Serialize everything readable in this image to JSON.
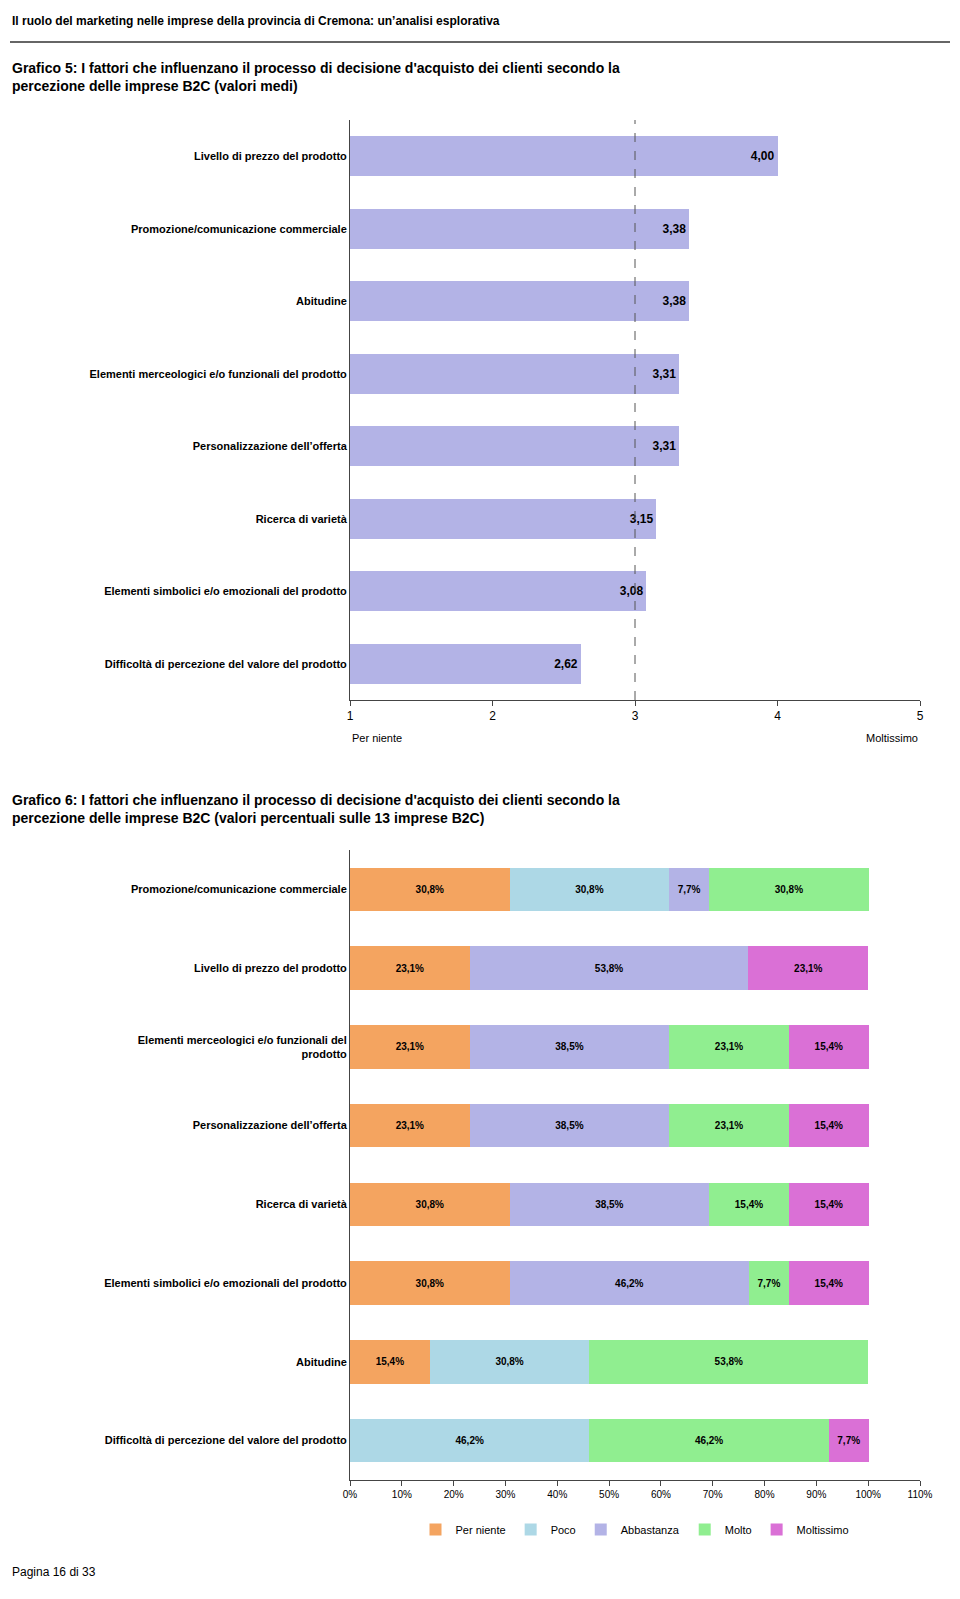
{
  "header": "Il ruolo del marketing nelle imprese della provincia di Cremona: un’analisi esplorativa",
  "footer": "Pagina 16 di 33",
  "chart_data": [
    {
      "type": "bar",
      "orientation": "horizontal",
      "title": "Grafico 5: I fattori che influenzano il processo di decisione d'acquisto dei clienti secondo la\npercezione delle imprese B2C (valori medi)",
      "categories": [
        "Livello di prezzo del prodotto",
        "Promozione/comunicazione commerciale",
        "Abitudine",
        "Elementi merceologici e/o funzionali del prodotto",
        "Personalizzazione dell’offerta",
        "Ricerca di varietà",
        "Elementi simbolici e/o emozionali del prodotto",
        "Difficoltà di percezione del valore del prodotto"
      ],
      "values": [
        4.0,
        3.38,
        3.38,
        3.31,
        3.31,
        3.15,
        3.08,
        2.62
      ],
      "value_labels": [
        "4,00",
        "3,38",
        "3,38",
        "3,31",
        "3,31",
        "3,15",
        "3,08",
        "2,62"
      ],
      "data_labels": true,
      "color": "#b3b3e6",
      "xlim": [
        1,
        5
      ],
      "xticks": [
        1,
        2,
        3,
        4,
        5
      ],
      "vline": 3,
      "annotations": [
        "Per niente",
        "Moltissimo"
      ],
      "grid": false
    },
    {
      "type": "bar",
      "orientation": "horizontal",
      "stacked": true,
      "title": "Grafico 6: I fattori che influenzano il processo di decisione d'acquisto dei clienti secondo la\npercezione delle imprese B2C (valori percentuali sulle 13 imprese B2C)",
      "categories": [
        "Promozione/comunicazione commerciale",
        "Livello di prezzo del prodotto",
        "Elementi merceologici e/o funzionali del\nprodotto",
        "Personalizzazione dell’offerta",
        "Ricerca di varietà",
        "Elementi simbolici e/o emozionali del prodotto",
        "Abitudine",
        "Difficoltà di percezione del valore del prodotto"
      ],
      "series": [
        {
          "name": "Per niente",
          "color": "#f4a460",
          "values": [
            30.8,
            23.1,
            23.1,
            23.1,
            30.8,
            30.8,
            15.4,
            0.0
          ],
          "value_labels": [
            "30,8%",
            "23,1%",
            "23,1%",
            "23,1%",
            "30,8%",
            "30,8%",
            "15,4%",
            null
          ]
        },
        {
          "name": "Poco",
          "color": "#add8e6",
          "values": [
            30.8,
            0.0,
            0.0,
            0.0,
            0.0,
            0.0,
            30.8,
            46.2
          ],
          "value_labels": [
            "30,8%",
            null,
            null,
            null,
            null,
            null,
            "30,8%",
            "46,2%"
          ]
        },
        {
          "name": "Abbastanza",
          "color": "#b3b3e6",
          "values": [
            7.7,
            53.8,
            38.5,
            38.5,
            38.5,
            46.2,
            0.0,
            0.0
          ],
          "value_labels": [
            "7,7%",
            "53,8%",
            "38,5%",
            "38,5%",
            "38,5%",
            "46,2%",
            null,
            null
          ]
        },
        {
          "name": "Molto",
          "color": "#90ee90",
          "values": [
            30.8,
            0.0,
            23.1,
            23.1,
            15.4,
            7.7,
            53.8,
            46.2
          ],
          "value_labels": [
            "30,8%",
            null,
            "23,1%",
            "23,1%",
            "15,4%",
            "7,7%",
            "53,8%",
            "46,2%"
          ]
        },
        {
          "name": "Moltissimo",
          "color": "#da70d6",
          "values": [
            0.0,
            23.1,
            15.4,
            15.4,
            15.4,
            15.4,
            0.0,
            7.7
          ],
          "value_labels": [
            null,
            "23,1%",
            "15,4%",
            "15,4%",
            "15,4%",
            "15,4%",
            null,
            "7,7%"
          ]
        }
      ],
      "data_labels": true,
      "xlim": [
        0,
        110
      ],
      "xticks": [
        {
          "value": 0,
          "label": "0%"
        },
        {
          "value": 10,
          "label": "10%"
        },
        {
          "value": 20,
          "label": "20%"
        },
        {
          "value": 30,
          "label": "30%"
        },
        {
          "value": 40,
          "label": "40%"
        },
        {
          "value": 50,
          "label": "50%"
        },
        {
          "value": 60,
          "label": "60%"
        },
        {
          "value": 70,
          "label": "70%"
        },
        {
          "value": 80,
          "label": "80%"
        },
        {
          "value": 90,
          "label": "90%"
        },
        {
          "value": 100,
          "label": "100%"
        },
        {
          "value": 110,
          "label": "110%"
        }
      ],
      "legend": "bottom",
      "grid": false
    }
  ]
}
